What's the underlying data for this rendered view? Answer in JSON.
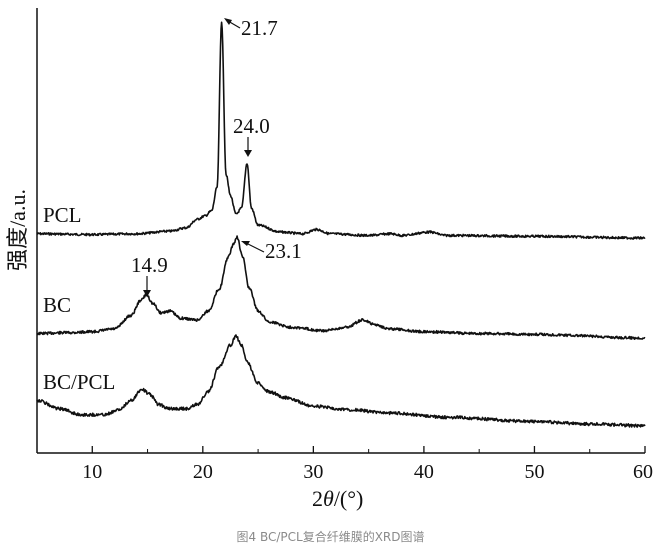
{
  "caption": "图4 BC/PCL复合纤维膜的XRD图谱",
  "chart_data": {
    "type": "line",
    "xlabel_prefix": "2",
    "xlabel_theta": "θ",
    "xlabel_suffix": "/(°)",
    "ylabel": "强度/a.u.",
    "xlim": [
      5,
      60
    ],
    "xticks": [
      10,
      20,
      30,
      40,
      50,
      60
    ],
    "grid": false,
    "series": [
      {
        "name": "PCL",
        "color": "#111111",
        "points": [
          [
            5,
            0.05
          ],
          [
            10,
            0.04
          ],
          [
            14,
            0.05
          ],
          [
            17,
            0.08
          ],
          [
            18.5,
            0.12
          ],
          [
            19.5,
            0.22
          ],
          [
            20.2,
            0.26
          ],
          [
            20.8,
            0.32
          ],
          [
            21.3,
            0.6
          ],
          [
            21.7,
            2.55
          ],
          [
            22.1,
            0.75
          ],
          [
            22.5,
            0.5
          ],
          [
            23.0,
            0.28
          ],
          [
            23.5,
            0.35
          ],
          [
            24.0,
            0.88
          ],
          [
            24.4,
            0.35
          ],
          [
            25.0,
            0.15
          ],
          [
            27,
            0.07
          ],
          [
            29,
            0.05
          ],
          [
            30.3,
            0.1
          ],
          [
            31.5,
            0.05
          ],
          [
            35,
            0.03
          ],
          [
            37,
            0.05
          ],
          [
            38,
            0.03
          ],
          [
            40.5,
            0.07
          ],
          [
            42,
            0.03
          ],
          [
            50,
            0.02
          ],
          [
            60,
            0.0
          ]
        ]
      },
      {
        "name": "BC",
        "color": "#111111",
        "points": [
          [
            5,
            0.05
          ],
          [
            8,
            0.06
          ],
          [
            10,
            0.07
          ],
          [
            12,
            0.1
          ],
          [
            13.5,
            0.25
          ],
          [
            14.4,
            0.42
          ],
          [
            14.9,
            0.48
          ],
          [
            15.5,
            0.38
          ],
          [
            16.2,
            0.28
          ],
          [
            17,
            0.3
          ],
          [
            18,
            0.22
          ],
          [
            19.5,
            0.2
          ],
          [
            20.5,
            0.3
          ],
          [
            21.5,
            0.55
          ],
          [
            22.3,
            0.9
          ],
          [
            22.8,
            1.05
          ],
          [
            23.1,
            1.12
          ],
          [
            23.6,
            0.9
          ],
          [
            24.2,
            0.55
          ],
          [
            25,
            0.3
          ],
          [
            26,
            0.18
          ],
          [
            28,
            0.12
          ],
          [
            31,
            0.08
          ],
          [
            33,
            0.12
          ],
          [
            34.5,
            0.2
          ],
          [
            35.5,
            0.15
          ],
          [
            37,
            0.1
          ],
          [
            40,
            0.07
          ],
          [
            45,
            0.05
          ],
          [
            50,
            0.04
          ],
          [
            60,
            0.0
          ]
        ]
      },
      {
        "name": "BC/PCL",
        "color": "#111111",
        "points": [
          [
            5,
            0.35
          ],
          [
            7,
            0.25
          ],
          [
            9,
            0.18
          ],
          [
            11,
            0.18
          ],
          [
            12.5,
            0.24
          ],
          [
            13.5,
            0.35
          ],
          [
            14.5,
            0.48
          ],
          [
            15.2,
            0.42
          ],
          [
            16,
            0.3
          ],
          [
            17,
            0.25
          ],
          [
            18.5,
            0.25
          ],
          [
            19.5,
            0.3
          ],
          [
            20.5,
            0.45
          ],
          [
            21.5,
            0.75
          ],
          [
            22.5,
            1.0
          ],
          [
            23.0,
            1.1
          ],
          [
            23.5,
            1.0
          ],
          [
            24.0,
            0.8
          ],
          [
            25,
            0.55
          ],
          [
            26,
            0.45
          ],
          [
            27.5,
            0.38
          ],
          [
            30,
            0.28
          ],
          [
            33,
            0.24
          ],
          [
            37,
            0.2
          ],
          [
            42,
            0.15
          ],
          [
            50,
            0.1
          ],
          [
            55,
            0.07
          ],
          [
            60,
            0.05
          ]
        ]
      }
    ],
    "annotations": [
      {
        "text": "21.7",
        "x": 21.7
      },
      {
        "text": "24.0",
        "x": 24.0
      },
      {
        "text": "14.9",
        "x": 14.9
      },
      {
        "text": "23.1",
        "x": 23.1
      }
    ]
  }
}
